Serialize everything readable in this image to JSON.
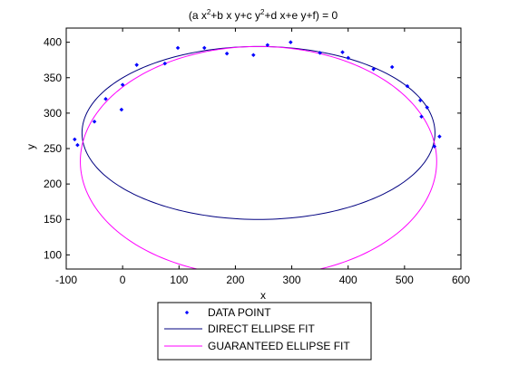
{
  "chart_data": {
    "type": "scatter",
    "title_parts": {
      "a": "(a x",
      "sup1": "2",
      "b": "+b x y+c y",
      "sup2": "2",
      "c": "+d x+e y+f) = 0"
    },
    "xlabel": "x",
    "ylabel": "y",
    "xlim": [
      -100,
      600
    ],
    "ylim": [
      80,
      420
    ],
    "xticks": [
      -100,
      0,
      100,
      200,
      300,
      400,
      500,
      600
    ],
    "yticks": [
      100,
      150,
      200,
      250,
      300,
      350,
      400
    ],
    "grid": false,
    "legend_position": "bottom-center, outside",
    "series": [
      {
        "name": "DATA POINT",
        "kind": "points",
        "color": "#0000ff",
        "points": [
          [
            -85,
            263
          ],
          [
            -80,
            255
          ],
          [
            -50,
            288
          ],
          [
            -30,
            320
          ],
          [
            -2,
            305
          ],
          [
            0,
            340
          ],
          [
            25,
            368
          ],
          [
            75,
            370
          ],
          [
            98,
            392
          ],
          [
            145,
            392
          ],
          [
            185,
            384
          ],
          [
            232,
            382
          ],
          [
            257,
            396
          ],
          [
            298,
            400
          ],
          [
            350,
            385
          ],
          [
            390,
            386
          ],
          [
            400,
            378
          ],
          [
            445,
            362
          ],
          [
            478,
            365
          ],
          [
            505,
            338
          ],
          [
            528,
            318
          ],
          [
            530,
            295
          ],
          [
            540,
            308
          ],
          [
            553,
            253
          ],
          [
            562,
            267
          ]
        ]
      },
      {
        "name": "DIRECT ELLIPSE FIT",
        "kind": "ellipse",
        "color": "#000080",
        "center": [
          241,
          272
        ],
        "axes": [
          313,
          122
        ],
        "angle_deg": 0
      },
      {
        "name": "GUARANTEED ELLIPSE FIT",
        "kind": "ellipse",
        "color": "#ff00ff",
        "center": [
          241,
          232
        ],
        "axes": [
          316,
          162
        ],
        "angle_deg": 0
      }
    ]
  }
}
